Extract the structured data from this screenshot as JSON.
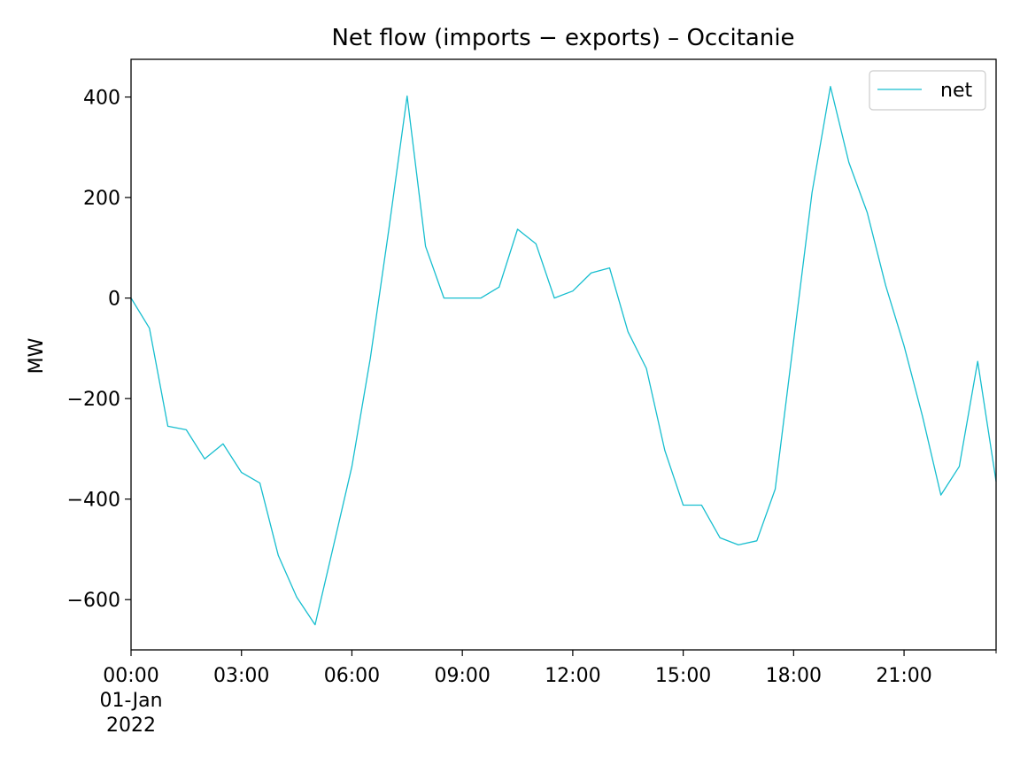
{
  "chart_data": {
    "type": "line",
    "title": "Net flow (imports − exports) – Occitanie",
    "xlabel": "",
    "ylabel": "MW",
    "x": [
      "00:00",
      "00:30",
      "01:00",
      "01:30",
      "02:00",
      "02:30",
      "03:00",
      "03:30",
      "04:00",
      "04:30",
      "05:00",
      "05:30",
      "06:00",
      "06:30",
      "07:00",
      "07:30",
      "08:00",
      "08:30",
      "09:00",
      "09:30",
      "10:00",
      "10:30",
      "11:00",
      "11:30",
      "12:00",
      "12:30",
      "13:00",
      "13:30",
      "14:00",
      "14:30",
      "15:00",
      "15:30",
      "16:00",
      "16:30",
      "17:00",
      "17:30",
      "18:00",
      "18:30",
      "19:00",
      "19:30",
      "20:00",
      "20:30",
      "21:00",
      "21:30",
      "22:00",
      "22:30",
      "23:00",
      "23:30"
    ],
    "x_hours": [
      0,
      0.5,
      1,
      1.5,
      2,
      2.5,
      3,
      3.5,
      4,
      4.5,
      5,
      5.5,
      6,
      6.5,
      7,
      7.5,
      8,
      8.5,
      9,
      9.5,
      10,
      10.5,
      11,
      11.5,
      12,
      12.5,
      13,
      13.5,
      14,
      14.5,
      15,
      15.5,
      16,
      16.5,
      17,
      17.5,
      18,
      18.5,
      19,
      19.5,
      20,
      20.5,
      21,
      21.5,
      22,
      22.5,
      23,
      23.5
    ],
    "series": [
      {
        "name": "net",
        "color": "#17becf",
        "values": [
          0,
          -60,
          -255,
          -262,
          -320,
          -290,
          -347,
          -368,
          -512,
          -595,
          -650,
          -493,
          -335,
          -120,
          135,
          402,
          103,
          0,
          0,
          0,
          22,
          137,
          108,
          0,
          14,
          50,
          60,
          -67,
          -140,
          -303,
          -412,
          -412,
          -477,
          -491,
          -483,
          -380,
          -85,
          210,
          421,
          270,
          170,
          25,
          -95,
          -235,
          -392,
          -335,
          -126,
          -365
        ]
      }
    ],
    "xticks": [
      "00:00",
      "03:00",
      "06:00",
      "09:00",
      "12:00",
      "15:00",
      "18:00",
      "21:00"
    ],
    "xtick_sublabel": [
      "01-Jan",
      "2022"
    ],
    "yticks": [
      400,
      200,
      0,
      -200,
      -400,
      -600
    ],
    "ytick_labels": [
      "400",
      "200",
      "0",
      "−200",
      "−400",
      "−600"
    ],
    "xlim": [
      0,
      23.5
    ],
    "ylim": [
      -700,
      475
    ],
    "grid": false,
    "legend": {
      "position": "top-right",
      "entries": [
        "net"
      ]
    }
  }
}
